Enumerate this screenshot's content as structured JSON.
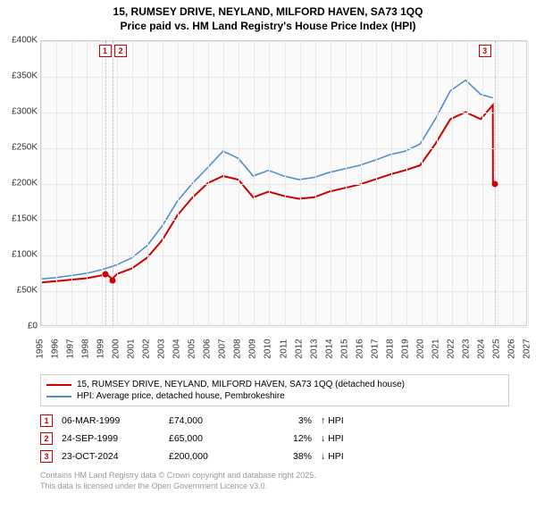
{
  "title": {
    "line1": "15, RUMSEY DRIVE, NEYLAND, MILFORD HAVEN, SA73 1QQ",
    "line2": "Price paid vs. HM Land Registry's House Price Index (HPI)"
  },
  "chart": {
    "type": "line",
    "background_color": "#fafafa",
    "grid_color": "#e8e8e8",
    "border_color": "#d0d0d0",
    "x": {
      "min": 1995,
      "max": 2027,
      "ticks": [
        1995,
        1996,
        1997,
        1998,
        1999,
        2000,
        2001,
        2002,
        2003,
        2004,
        2005,
        2006,
        2007,
        2008,
        2009,
        2010,
        2011,
        2012,
        2013,
        2014,
        2015,
        2016,
        2017,
        2018,
        2019,
        2020,
        2021,
        2022,
        2023,
        2024,
        2025,
        2026,
        2027
      ],
      "label_fontsize": 10
    },
    "y": {
      "min": 0,
      "max": 400000,
      "ticks": [
        0,
        50000,
        100000,
        150000,
        200000,
        250000,
        300000,
        350000,
        400000
      ],
      "tick_labels": [
        "£0",
        "£50K",
        "£100K",
        "£150K",
        "£200K",
        "£250K",
        "£300K",
        "£350K",
        "£400K"
      ],
      "label_fontsize": 10
    },
    "series": [
      {
        "name": "price_paid",
        "label": "15, RUMSEY DRIVE, NEYLAND, MILFORD HAVEN, SA73 1QQ (detached house)",
        "color": "#cc0000",
        "line_width": 2,
        "points": [
          [
            1995,
            60000
          ],
          [
            1996,
            62000
          ],
          [
            1997,
            64000
          ],
          [
            1998,
            66000
          ],
          [
            1999,
            70000
          ],
          [
            1999.2,
            74000
          ],
          [
            1999.7,
            65000
          ],
          [
            2000,
            72000
          ],
          [
            2001,
            80000
          ],
          [
            2002,
            95000
          ],
          [
            2003,
            120000
          ],
          [
            2004,
            155000
          ],
          [
            2005,
            180000
          ],
          [
            2006,
            200000
          ],
          [
            2007,
            210000
          ],
          [
            2008,
            205000
          ],
          [
            2009,
            180000
          ],
          [
            2010,
            188000
          ],
          [
            2011,
            182000
          ],
          [
            2012,
            178000
          ],
          [
            2013,
            180000
          ],
          [
            2014,
            188000
          ],
          [
            2015,
            193000
          ],
          [
            2016,
            198000
          ],
          [
            2017,
            205000
          ],
          [
            2018,
            212000
          ],
          [
            2019,
            218000
          ],
          [
            2020,
            225000
          ],
          [
            2021,
            255000
          ],
          [
            2022,
            290000
          ],
          [
            2023,
            300000
          ],
          [
            2024,
            290000
          ],
          [
            2024.8,
            310000
          ],
          [
            2024.81,
            200000
          ]
        ]
      },
      {
        "name": "hpi",
        "label": "HPI: Average price, detached house, Pembrokeshire",
        "color": "#4f8fcf",
        "line_width": 1.6,
        "points": [
          [
            1995,
            65000
          ],
          [
            1996,
            67000
          ],
          [
            1997,
            70000
          ],
          [
            1998,
            73000
          ],
          [
            1999,
            78000
          ],
          [
            2000,
            85000
          ],
          [
            2001,
            95000
          ],
          [
            2002,
            112000
          ],
          [
            2003,
            140000
          ],
          [
            2004,
            175000
          ],
          [
            2005,
            200000
          ],
          [
            2006,
            222000
          ],
          [
            2007,
            245000
          ],
          [
            2008,
            235000
          ],
          [
            2009,
            210000
          ],
          [
            2010,
            218000
          ],
          [
            2011,
            210000
          ],
          [
            2012,
            205000
          ],
          [
            2013,
            208000
          ],
          [
            2014,
            215000
          ],
          [
            2015,
            220000
          ],
          [
            2016,
            225000
          ],
          [
            2017,
            232000
          ],
          [
            2018,
            240000
          ],
          [
            2019,
            245000
          ],
          [
            2020,
            255000
          ],
          [
            2021,
            290000
          ],
          [
            2022,
            330000
          ],
          [
            2023,
            345000
          ],
          [
            2024,
            325000
          ],
          [
            2024.8,
            320000
          ]
        ]
      }
    ],
    "markers": [
      {
        "idx": "1",
        "x": 1999.2,
        "y": 74000,
        "dot_color": "#cc0000"
      },
      {
        "idx": "2",
        "x": 1999.7,
        "y": 65000,
        "dot_color": "#cc0000"
      },
      {
        "idx": "3",
        "x": 2024.81,
        "y": 200000,
        "dot_color": "#cc0000"
      }
    ]
  },
  "legend": {
    "border_color": "#cfcfcf",
    "items": [
      {
        "color": "#cc0000",
        "label": "15, RUMSEY DRIVE, NEYLAND, MILFORD HAVEN, SA73 1QQ (detached house)"
      },
      {
        "color": "#4f8fcf",
        "label": "HPI: Average price, detached house, Pembrokeshire"
      }
    ]
  },
  "transactions": [
    {
      "idx": "1",
      "date": "06-MAR-1999",
      "price": "£74,000",
      "pct": "3%",
      "arrow": "↑",
      "dir": "HPI"
    },
    {
      "idx": "2",
      "date": "24-SEP-1999",
      "price": "£65,000",
      "pct": "12%",
      "arrow": "↓",
      "dir": "HPI"
    },
    {
      "idx": "3",
      "date": "23-OCT-2024",
      "price": "£200,000",
      "pct": "38%",
      "arrow": "↓",
      "dir": "HPI"
    }
  ],
  "attribution": {
    "line1": "Contains HM Land Registry data © Crown copyright and database right 2025.",
    "line2": "This data is licensed under the Open Government Licence v3.0."
  }
}
